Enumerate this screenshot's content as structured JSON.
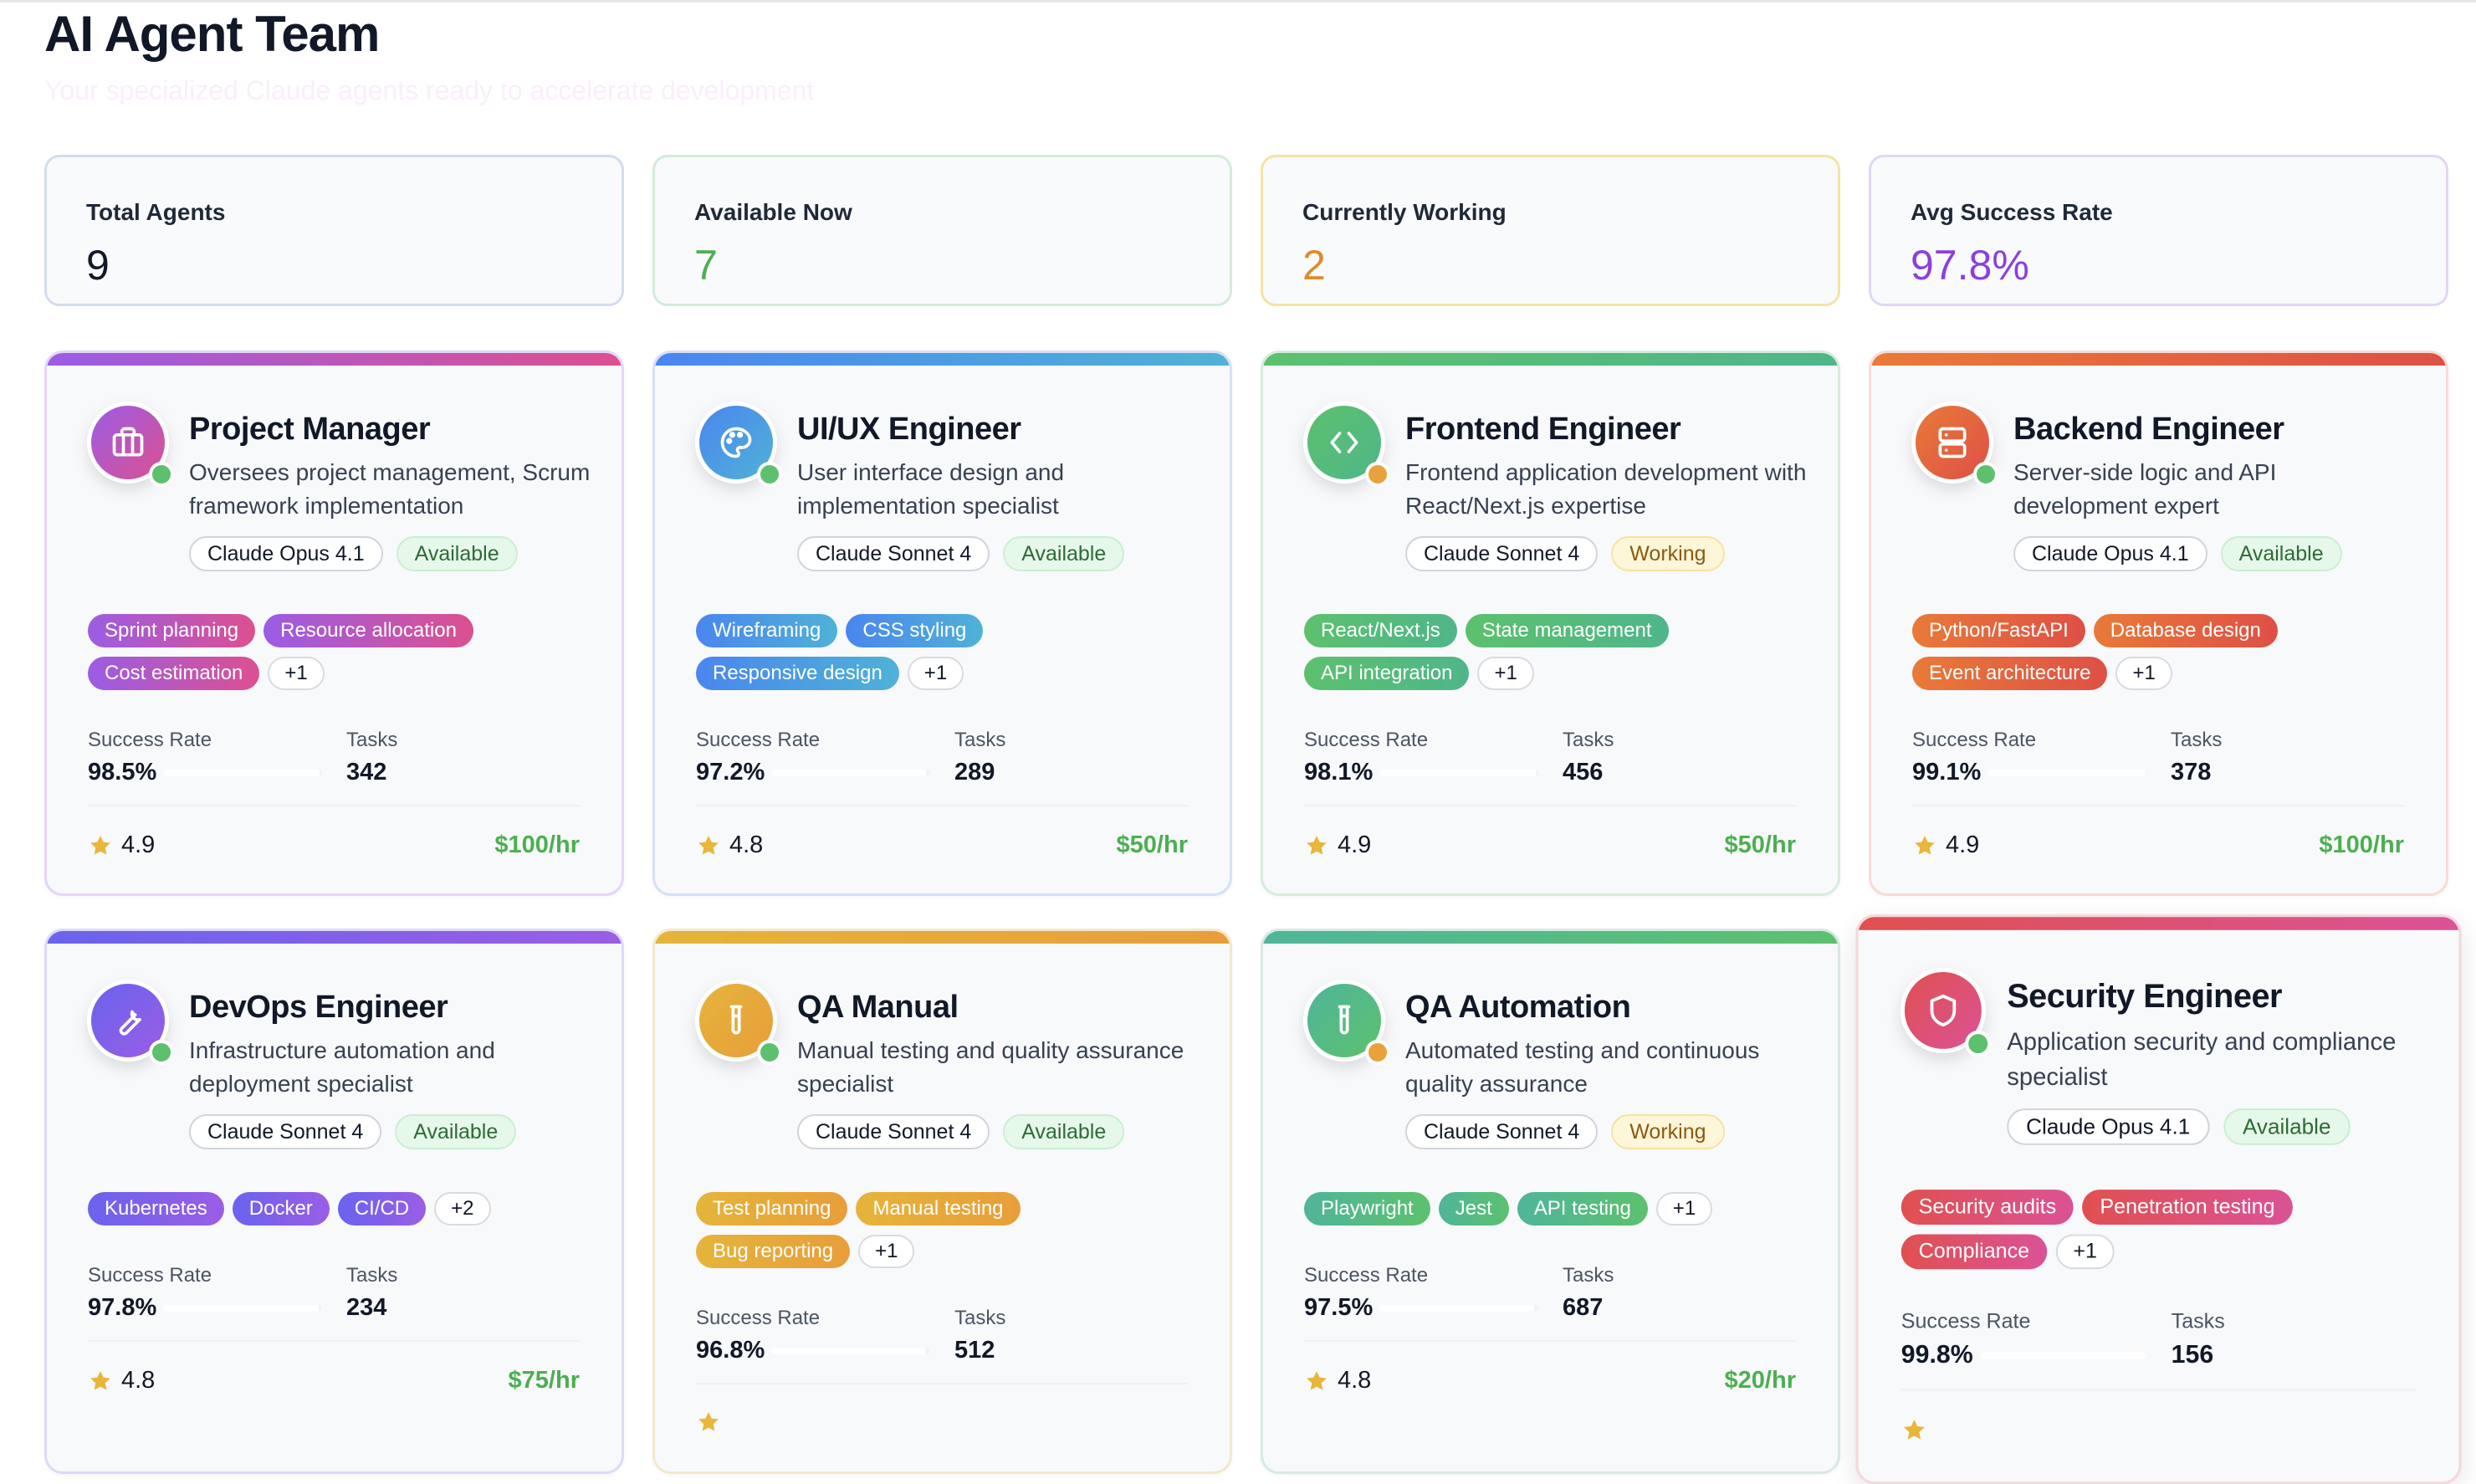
{
  "header": {
    "title": "AI Agent Team",
    "subtitle": "Your specialized Claude agents ready to accelerate development"
  },
  "stats": [
    {
      "label": "Total Agents",
      "value": "9",
      "color": "#111827",
      "border": "#d4dcee"
    },
    {
      "label": "Available Now",
      "value": "7",
      "color": "#4caf50",
      "border": "#d3ecd9"
    },
    {
      "label": "Currently Working",
      "value": "2",
      "color": "#e08a2c",
      "border": "#f3e3a5"
    },
    {
      "label": "Avg Success Rate",
      "value": "97.8%",
      "color": "#8b3fe0",
      "border": "#e2d6f5"
    }
  ],
  "labels": {
    "success_rate": "Success Rate",
    "tasks": "Tasks"
  },
  "colors": {
    "available": "#5cc16d",
    "working": "#e9a23b",
    "star": "#e8b63a"
  },
  "agents": [
    {
      "name": "Project Manager",
      "icon": "briefcase-icon",
      "description": "Oversees project management, Scrum framework implementation",
      "model": "Claude Opus 4.1",
      "status": "Available",
      "skills": [
        "Sprint planning",
        "Resource allocation",
        "Cost estimation"
      ],
      "more": "+1",
      "success_rate": "98.5%",
      "success_value": 98.5,
      "tasks": "342",
      "rating": "4.9",
      "price": "$100/hr",
      "gradient": [
        "#9b5de5",
        "#dc5090"
      ],
      "border": "#e4d6f7"
    },
    {
      "name": "UI/UX Engineer",
      "icon": "palette-icon",
      "description": "User interface design and implementation specialist",
      "model": "Claude Sonnet 4",
      "status": "Available",
      "skills": [
        "Wireframing",
        "CSS styling",
        "Responsive design"
      ],
      "more": "+1",
      "success_rate": "97.2%",
      "success_value": 97.2,
      "tasks": "289",
      "rating": "4.8",
      "price": "$50/hr",
      "gradient": [
        "#4a86ef",
        "#4fb2d6"
      ],
      "border": "#d6e0f5"
    },
    {
      "name": "Frontend Engineer",
      "icon": "code-icon",
      "description": "Frontend application development with React/Next.js expertise",
      "model": "Claude Sonnet 4",
      "status": "Working",
      "skills": [
        "React/Next.js",
        "State management",
        "API integration"
      ],
      "more": "+1",
      "success_rate": "98.1%",
      "success_value": 98.1,
      "tasks": "456",
      "rating": "4.9",
      "price": "$50/hr",
      "gradient": [
        "#5cc16d",
        "#4fb68a"
      ],
      "border": "#d6ecdc"
    },
    {
      "name": "Backend Engineer",
      "icon": "server-icon",
      "description": "Server-side logic and API development expert",
      "model": "Claude Opus 4.1",
      "status": "Available",
      "skills": [
        "Python/FastAPI",
        "Database design",
        "Event architecture"
      ],
      "more": "+1",
      "success_rate": "99.1%",
      "success_value": 99.1,
      "tasks": "378",
      "rating": "4.9",
      "price": "$100/hr",
      "gradient": [
        "#e97a38",
        "#de5046"
      ],
      "border": "#f6dcd4"
    },
    {
      "name": "DevOps Engineer",
      "icon": "wrench-icon",
      "description": "Infrastructure automation and deployment specialist",
      "model": "Claude Sonnet 4",
      "status": "Available",
      "skills": [
        "Kubernetes",
        "Docker",
        "CI/CD"
      ],
      "more": "+2",
      "success_rate": "97.8%",
      "success_value": 97.8,
      "tasks": "234",
      "rating": "4.8",
      "price": "$75/hr",
      "gradient": [
        "#6a63ee",
        "#9b5de5"
      ],
      "border": "#dcdaf8"
    },
    {
      "name": "QA Manual",
      "icon": "test-tube-icon",
      "description": "Manual testing and quality assurance specialist",
      "model": "Claude Sonnet 4",
      "status": "Available",
      "skills": [
        "Test planning",
        "Manual testing",
        "Bug reporting"
      ],
      "more": "+1",
      "success_rate": "96.8%",
      "success_value": 96.8,
      "tasks": "512",
      "rating": "",
      "price": "",
      "gradient": [
        "#e5b43a",
        "#e89e3a"
      ],
      "border": "#f3e8cc"
    },
    {
      "name": "QA Automation",
      "icon": "test-tube-icon",
      "description": "Automated testing and continuous quality assurance",
      "model": "Claude Sonnet 4",
      "status": "Working",
      "skills": [
        "Playwright",
        "Jest",
        "API testing"
      ],
      "more": "+1",
      "success_rate": "97.5%",
      "success_value": 97.5,
      "tasks": "687",
      "rating": "4.8",
      "price": "$20/hr",
      "gradient": [
        "#4fb59a",
        "#5cc16d"
      ],
      "border": "#d6eae4"
    },
    {
      "name": "Security Engineer",
      "icon": "shield-icon",
      "description": "Application security and compliance specialist",
      "model": "Claude Opus 4.1",
      "status": "Available",
      "skills": [
        "Security audits",
        "Penetration testing",
        "Compliance"
      ],
      "more": "+1",
      "success_rate": "99.8%",
      "success_value": 99.8,
      "tasks": "156",
      "rating": "",
      "price": "",
      "gradient": [
        "#e05050",
        "#db5296"
      ],
      "border": "#f4d8dc"
    }
  ]
}
